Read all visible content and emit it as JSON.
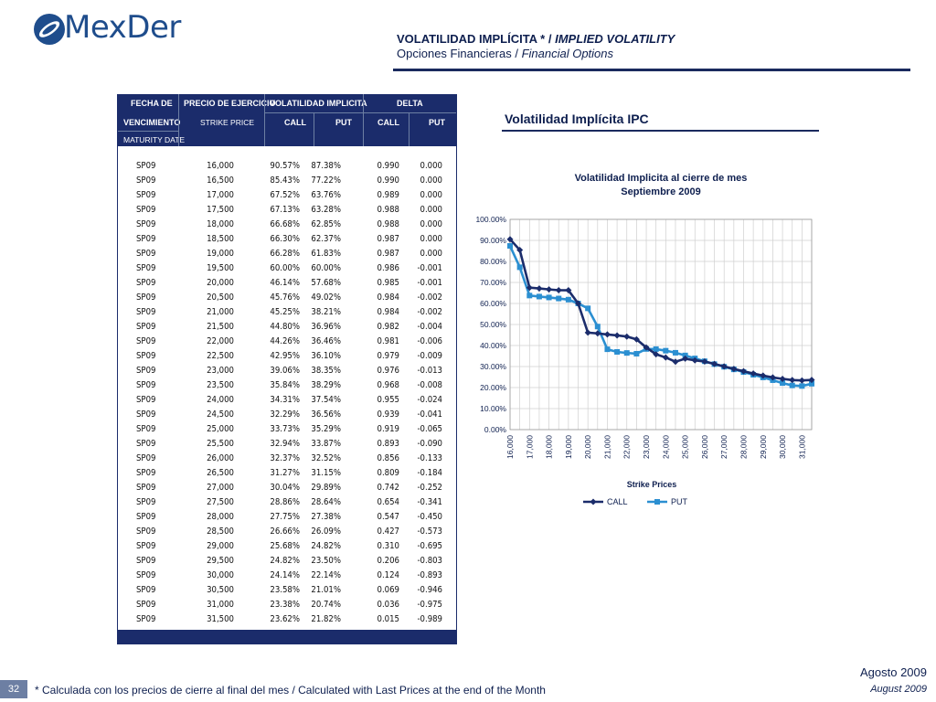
{
  "brand": {
    "name": "MexDer"
  },
  "header": {
    "title_es": "VOLATILIDAD IMPLÍCITA * / ",
    "title_en": "IMPLIED VOLATILITY",
    "subtitle_es": "Opciones Financieras / ",
    "subtitle_en": "Financial Options"
  },
  "table": {
    "headers": {
      "fecha": "FECHA DE",
      "vencimiento": "VENCIMIENTO",
      "maturity": "MATURITY DATE",
      "precio": "PRECIO DE EJERCICIO",
      "strike": "STRIKE PRICE",
      "volatilidad": "VOLATILIDAD IMPLICITA",
      "delta": "DELTA",
      "call": "CALL",
      "put": "PUT"
    },
    "rows": [
      [
        "SP09",
        "16,000",
        "90.57%",
        "87.38%",
        "0.990",
        "0.000"
      ],
      [
        "SP09",
        "16,500",
        "85.43%",
        "77.22%",
        "0.990",
        "0.000"
      ],
      [
        "SP09",
        "17,000",
        "67.52%",
        "63.76%",
        "0.989",
        "0.000"
      ],
      [
        "SP09",
        "17,500",
        "67.13%",
        "63.28%",
        "0.988",
        "0.000"
      ],
      [
        "SP09",
        "18,000",
        "66.68%",
        "62.85%",
        "0.988",
        "0.000"
      ],
      [
        "SP09",
        "18,500",
        "66.30%",
        "62.37%",
        "0.987",
        "0.000"
      ],
      [
        "SP09",
        "19,000",
        "66.28%",
        "61.83%",
        "0.987",
        "0.000"
      ],
      [
        "SP09",
        "19,500",
        "60.00%",
        "60.00%",
        "0.986",
        "-0.001"
      ],
      [
        "SP09",
        "20,000",
        "46.14%",
        "57.68%",
        "0.985",
        "-0.001"
      ],
      [
        "SP09",
        "20,500",
        "45.76%",
        "49.02%",
        "0.984",
        "-0.002"
      ],
      [
        "SP09",
        "21,000",
        "45.25%",
        "38.21%",
        "0.984",
        "-0.002"
      ],
      [
        "SP09",
        "21,500",
        "44.80%",
        "36.96%",
        "0.982",
        "-0.004"
      ],
      [
        "SP09",
        "22,000",
        "44.26%",
        "36.46%",
        "0.981",
        "-0.006"
      ],
      [
        "SP09",
        "22,500",
        "42.95%",
        "36.10%",
        "0.979",
        "-0.009"
      ],
      [
        "SP09",
        "23,000",
        "39.06%",
        "38.35%",
        "0.976",
        "-0.013"
      ],
      [
        "SP09",
        "23,500",
        "35.84%",
        "38.29%",
        "0.968",
        "-0.008"
      ],
      [
        "SP09",
        "24,000",
        "34.31%",
        "37.54%",
        "0.955",
        "-0.024"
      ],
      [
        "SP09",
        "24,500",
        "32.29%",
        "36.56%",
        "0.939",
        "-0.041"
      ],
      [
        "SP09",
        "25,000",
        "33.73%",
        "35.29%",
        "0.919",
        "-0.065"
      ],
      [
        "SP09",
        "25,500",
        "32.94%",
        "33.87%",
        "0.893",
        "-0.090"
      ],
      [
        "SP09",
        "26,000",
        "32.37%",
        "32.52%",
        "0.856",
        "-0.133"
      ],
      [
        "SP09",
        "26,500",
        "31.27%",
        "31.15%",
        "0.809",
        "-0.184"
      ],
      [
        "SP09",
        "27,000",
        "30.04%",
        "29.89%",
        "0.742",
        "-0.252"
      ],
      [
        "SP09",
        "27,500",
        "28.86%",
        "28.64%",
        "0.654",
        "-0.341"
      ],
      [
        "SP09",
        "28,000",
        "27.75%",
        "27.38%",
        "0.547",
        "-0.450"
      ],
      [
        "SP09",
        "28,500",
        "26.66%",
        "26.09%",
        "0.427",
        "-0.573"
      ],
      [
        "SP09",
        "29,000",
        "25.68%",
        "24.82%",
        "0.310",
        "-0.695"
      ],
      [
        "SP09",
        "29,500",
        "24.82%",
        "23.50%",
        "0.206",
        "-0.803"
      ],
      [
        "SP09",
        "30,000",
        "24.14%",
        "22.14%",
        "0.124",
        "-0.893"
      ],
      [
        "SP09",
        "30,500",
        "23.58%",
        "21.01%",
        "0.069",
        "-0.946"
      ],
      [
        "SP09",
        "31,000",
        "23.38%",
        "20.74%",
        "0.036",
        "-0.975"
      ],
      [
        "SP09",
        "31,500",
        "23.62%",
        "21.82%",
        "0.015",
        "-0.989"
      ]
    ]
  },
  "chart_panel_title": "Volatilidad Implícita IPC",
  "chart_data": {
    "type": "line",
    "title": "Volatilidad Implicita  al cierre de mes",
    "subtitle": "Septiembre 2009",
    "xlabel": "Strike Prices",
    "ylabel": "",
    "x": [
      16000,
      16500,
      17000,
      17500,
      18000,
      18500,
      19000,
      19500,
      20000,
      20500,
      21000,
      21500,
      22000,
      22500,
      23000,
      23500,
      24000,
      24500,
      25000,
      25500,
      26000,
      26500,
      27000,
      27500,
      28000,
      28500,
      29000,
      29500,
      30000,
      30500,
      31000,
      31500
    ],
    "x_tick_labels": [
      "16,000",
      "17,000",
      "18,000",
      "19,000",
      "20,000",
      "21,000",
      "22,000",
      "23,000",
      "24,000",
      "25,000",
      "26,000",
      "27,000",
      "28,000",
      "29,000",
      "30,000",
      "31,000"
    ],
    "y_tick_labels": [
      "0.00%",
      "10.00%",
      "20.00%",
      "30.00%",
      "40.00%",
      "50.00%",
      "60.00%",
      "70.00%",
      "80.00%",
      "90.00%",
      "100.00%"
    ],
    "ylim": [
      0,
      100
    ],
    "grid": true,
    "legend_position": "bottom",
    "series": [
      {
        "name": "CALL",
        "color": "#1b2c6b",
        "marker": "diamond",
        "values": [
          90.57,
          85.43,
          67.52,
          67.13,
          66.68,
          66.3,
          66.28,
          60.0,
          46.14,
          45.76,
          45.25,
          44.8,
          44.26,
          42.95,
          39.06,
          35.84,
          34.31,
          32.29,
          33.73,
          32.94,
          32.37,
          31.27,
          30.04,
          28.86,
          27.75,
          26.66,
          25.68,
          24.82,
          24.14,
          23.58,
          23.38,
          23.62
        ]
      },
      {
        "name": "PUT",
        "color": "#2b8fd1",
        "marker": "square",
        "values": [
          87.38,
          77.22,
          63.76,
          63.28,
          62.85,
          62.37,
          61.83,
          60.0,
          57.68,
          49.02,
          38.21,
          36.96,
          36.46,
          36.1,
          38.35,
          38.29,
          37.54,
          36.56,
          35.29,
          33.87,
          32.52,
          31.15,
          29.89,
          28.64,
          27.38,
          26.09,
          24.82,
          23.5,
          22.14,
          21.01,
          20.74,
          21.82
        ]
      }
    ]
  },
  "footer": {
    "date_es": "Agosto 2009",
    "date_en": "August 2009",
    "page_number": "32",
    "footnote": "* Calculada con los precios de cierre al final del mes / Calculated with Last Prices at the end of the Month"
  }
}
